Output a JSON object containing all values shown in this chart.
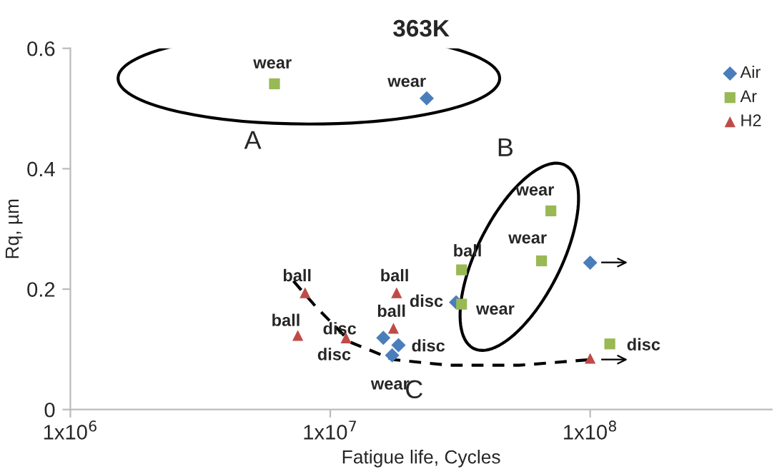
{
  "chart_data": {
    "type": "scatter",
    "title": "363K",
    "xlabel": "Fatigue life, Cycles",
    "ylabel": "Rq, µm",
    "log": "x",
    "xlim": [
      1000000,
      500000000
    ],
    "xticks": [
      {
        "value": 1000000,
        "label": "1x10$^{6}$"
      },
      {
        "value": 10000000,
        "label": "1x10$^{7}$"
      },
      {
        "value": 100000000,
        "label": "1x10$^{8}$"
      }
    ],
    "ylim": [
      0,
      0.6
    ],
    "yticks": [
      0,
      0.2,
      0.4,
      0.6
    ],
    "grid": false,
    "legend": "top right",
    "series": [
      {
        "name": "Air",
        "color": "#4a7ebb",
        "marker": "diamond",
        "x": [
          23500000,
          30500000,
          100000000,
          16000000,
          18300000,
          17300000
        ],
        "values": [
          0.517,
          0.178,
          0.244,
          0.119,
          0.107,
          0.09
        ]
      },
      {
        "name": "Ar",
        "color": "#98b954",
        "marker": "square",
        "x": [
          6100000,
          70600000,
          65000000,
          32000000,
          32000000,
          119000000
        ],
        "values": [
          0.541,
          0.33,
          0.247,
          0.232,
          0.175,
          0.109
        ]
      },
      {
        "name": "H2",
        "color": "#be4b48",
        "marker": "triangle",
        "x": [
          8000000,
          7500000,
          18000000,
          17500000,
          11500000,
          100000000
        ],
        "values": [
          0.194,
          0.123,
          0.194,
          0.135,
          0.119,
          0.085
        ]
      }
    ],
    "annotations": [
      {
        "text": "wear",
        "x": 6100000,
        "y": 0.541
      },
      {
        "text": "wear",
        "x": 23500000,
        "y": 0.517
      },
      {
        "text": "wear",
        "x": 70600000,
        "y": 0.33
      },
      {
        "text": "wear",
        "x": 65000000,
        "y": 0.247
      },
      {
        "text": "ball",
        "x": 32000000,
        "y": 0.232
      },
      {
        "text": "disc",
        "x": 30500000,
        "y": 0.178
      },
      {
        "text": "wear",
        "x": 32000000,
        "y": 0.175
      },
      {
        "text": "ball",
        "x": 8000000,
        "y": 0.194
      },
      {
        "text": "ball",
        "x": 18000000,
        "y": 0.194
      },
      {
        "text": "ball",
        "x": 17500000,
        "y": 0.135
      },
      {
        "text": "ball",
        "x": 7500000,
        "y": 0.123
      },
      {
        "text": "disc",
        "x": 16000000,
        "y": 0.119
      },
      {
        "text": "disc",
        "x": 11500000,
        "y": 0.119
      },
      {
        "text": "disc",
        "x": 18300000,
        "y": 0.107
      },
      {
        "text": "wear",
        "x": 17300000,
        "y": 0.09
      },
      {
        "text": "disc",
        "x": 119000000,
        "y": 0.109
      },
      "A",
      "B",
      "C"
    ]
  }
}
